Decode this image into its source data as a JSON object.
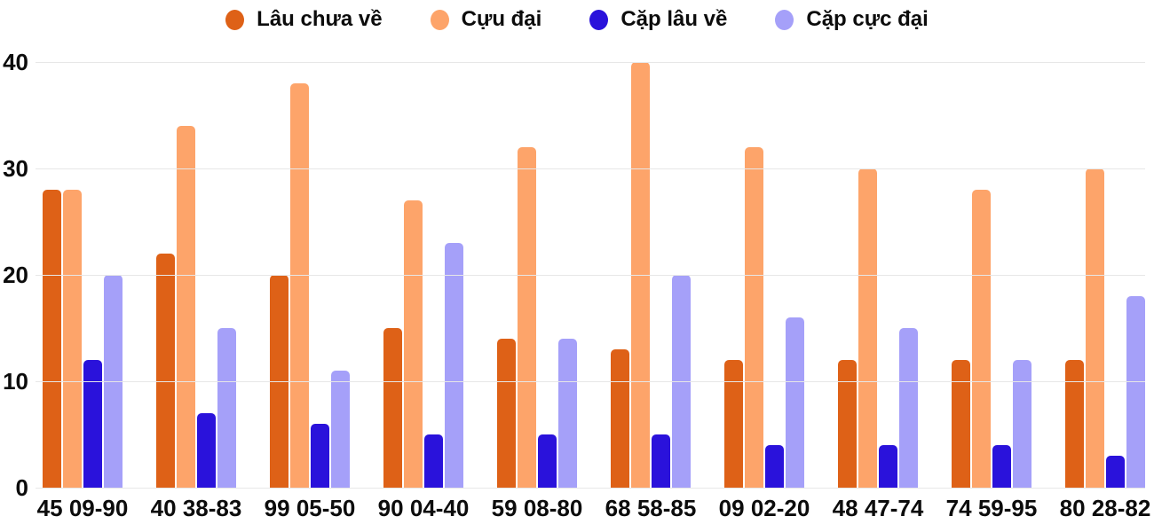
{
  "chart_data": {
    "type": "bar",
    "title": "",
    "xlabel": "",
    "ylabel": "",
    "ylim": [
      0,
      40
    ],
    "yticks": [
      0,
      10,
      20,
      30,
      40
    ],
    "grid": true,
    "legend_position": "top",
    "categories": [
      "45 09-90",
      "40 38-83",
      "99 05-50",
      "90 04-40",
      "59 08-80",
      "68 58-85",
      "09 02-20",
      "48 47-74",
      "74 59-95",
      "80 28-82"
    ],
    "series": [
      {
        "name": "Lâu chưa về",
        "color": "#de6117",
        "values": [
          28,
          22,
          20,
          15,
          14,
          13,
          12,
          12,
          12,
          12
        ]
      },
      {
        "name": "Cựu đại",
        "color": "#fda46a",
        "values": [
          28,
          34,
          38,
          27,
          32,
          40,
          32,
          30,
          28,
          30
        ]
      },
      {
        "name": "Cặp lâu về",
        "color": "#2a12db",
        "values": [
          12,
          7,
          6,
          5,
          5,
          5,
          4,
          4,
          4,
          3
        ]
      },
      {
        "name": "Cặp cực đại",
        "color": "#a5a0f9",
        "values": [
          20,
          15,
          11,
          23,
          14,
          20,
          16,
          15,
          12,
          18
        ]
      }
    ],
    "colors": {
      "grid": "#e7e7e7",
      "text": "#0c0c0c",
      "background": "#ffffff"
    }
  }
}
